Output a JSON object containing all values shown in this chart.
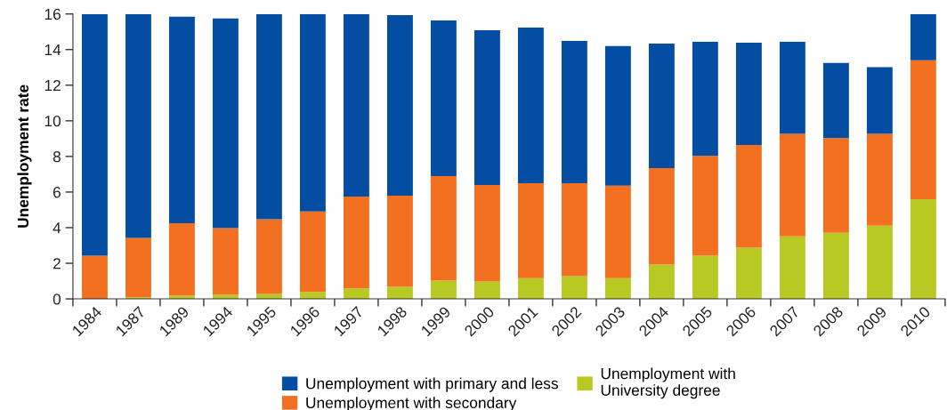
{
  "chart_data": {
    "type": "bar",
    "stacked": true,
    "ylabel": "Unemployment rate",
    "categories": [
      "1984",
      "1987",
      "1989",
      "1994",
      "1995",
      "1996",
      "1997",
      "1998",
      "1999",
      "2000",
      "2001",
      "2002",
      "2003",
      "2004",
      "2005",
      "2006",
      "2007",
      "2008",
      "2009",
      "2010"
    ],
    "series": [
      {
        "name": "Unemployment with\nUniversity degree",
        "color": "#b8c924",
        "values": [
          null,
          0.09,
          0.18,
          0.23,
          0.28,
          0.39,
          0.59,
          0.68,
          1.03,
          0.98,
          1.17,
          1.28,
          1.17,
          1.93,
          2.42,
          2.87,
          3.51,
          3.71,
          4.11,
          5.6
        ]
      },
      {
        "name": "Unemployment with secondary",
        "color": "#f37021",
        "values": [
          2.42,
          3.33,
          4.07,
          3.74,
          4.19,
          4.52,
          5.16,
          5.12,
          5.87,
          5.42,
          5.32,
          5.21,
          5.19,
          5.41,
          5.61,
          5.77,
          5.76,
          5.32,
          5.16,
          7.8
        ]
      },
      {
        "name": "Unemployment with primary and less",
        "color": "#034ea2",
        "values": [
          13.58,
          12.58,
          11.6,
          11.78,
          11.53,
          11.09,
          10.25,
          10.14,
          8.74,
          8.69,
          8.74,
          8.0,
          7.84,
          7.0,
          6.41,
          5.75,
          5.17,
          4.22,
          3.74,
          2.6
        ]
      }
    ],
    "ylim": [
      0,
      16
    ],
    "yticks": [
      0,
      2,
      4,
      6,
      8,
      10,
      12,
      14,
      16
    ],
    "grid": false,
    "legend": "bottom"
  }
}
